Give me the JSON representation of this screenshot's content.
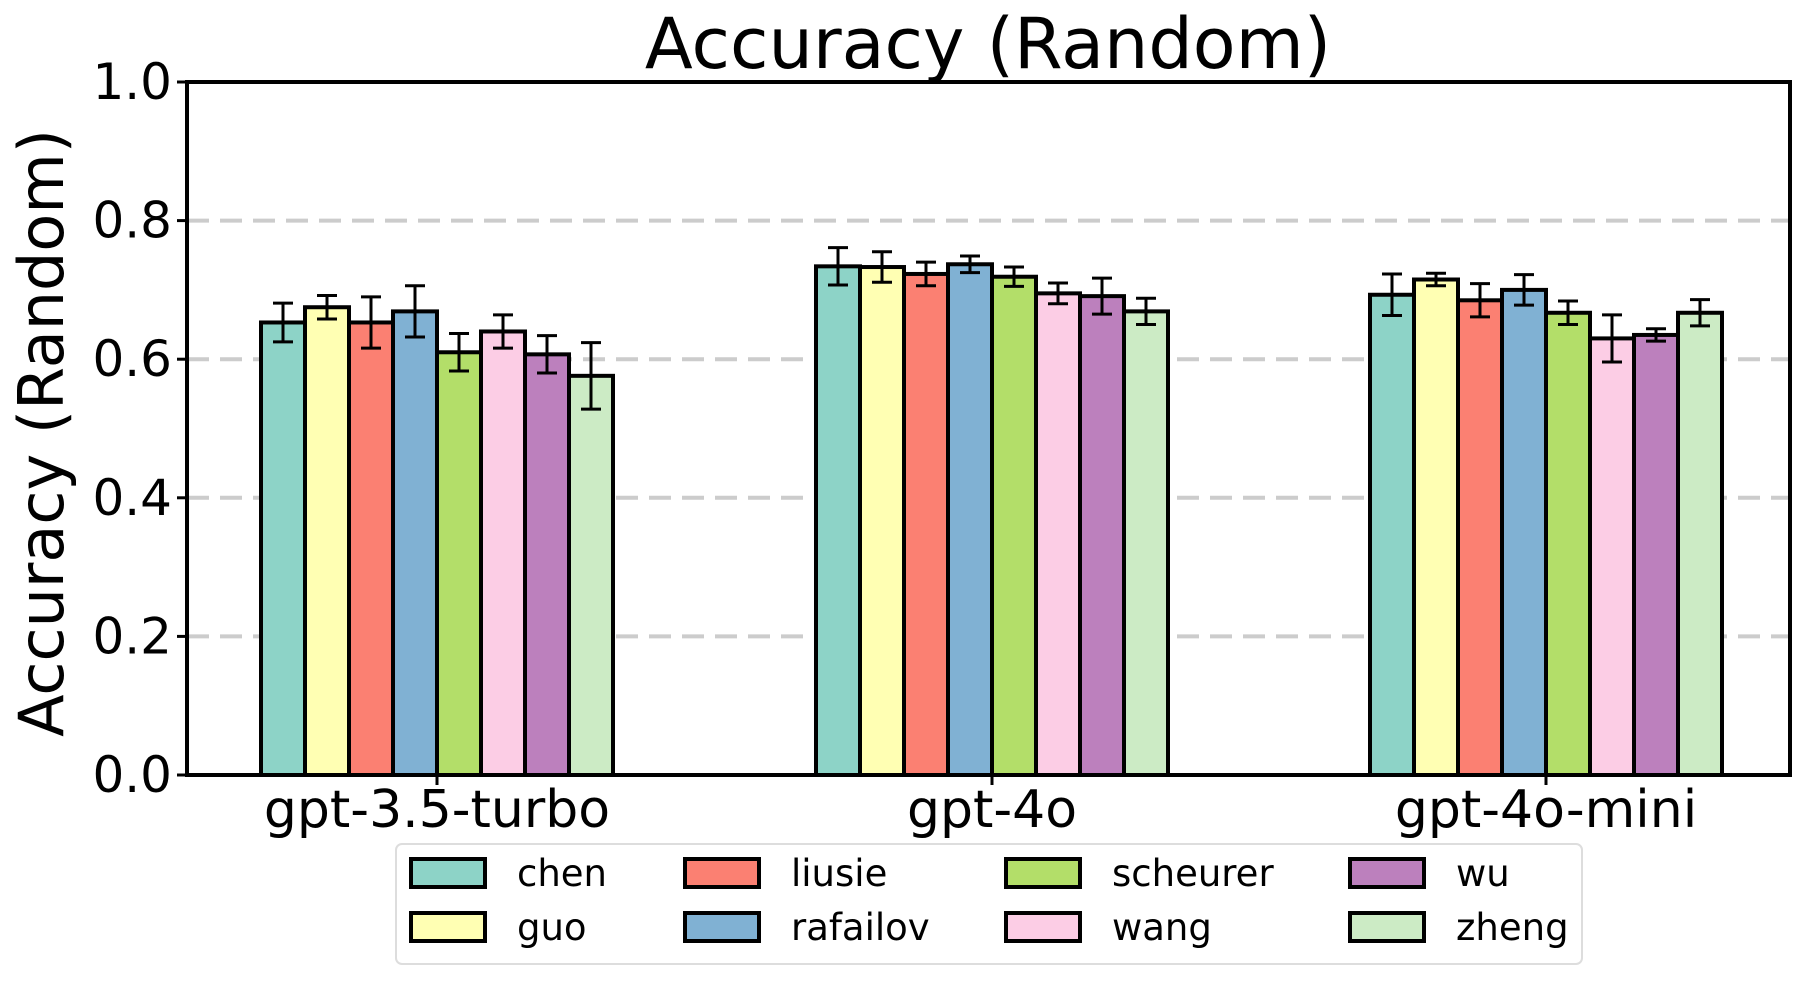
{
  "chart_data": {
    "type": "bar",
    "title": "Accuracy (Random)",
    "xlabel": "",
    "ylabel": "Accuracy (Random)",
    "ylim": [
      0.0,
      1.0
    ],
    "yticks": [
      "0.0",
      "0.2",
      "0.4",
      "0.6",
      "0.8",
      "1.0"
    ],
    "grid": "horizontal dashed at 0.2, 0.4, 0.6, 0.8",
    "legend_position": "bottom-center",
    "categories": [
      "gpt-3.5-turbo",
      "gpt-4o",
      "gpt-4o-mini"
    ],
    "series": [
      {
        "name": "chen",
        "color": "#8dd3c7",
        "values": [
          0.653,
          0.734,
          0.693
        ],
        "errors": [
          0.028,
          0.027,
          0.03
        ]
      },
      {
        "name": "guo",
        "color": "#ffffb3",
        "values": [
          0.675,
          0.733,
          0.715
        ],
        "errors": [
          0.017,
          0.022,
          0.009
        ]
      },
      {
        "name": "liusie",
        "color": "#fb8072",
        "values": [
          0.653,
          0.723,
          0.685
        ],
        "errors": [
          0.037,
          0.017,
          0.024
        ]
      },
      {
        "name": "rafailov",
        "color": "#80b1d3",
        "values": [
          0.669,
          0.737,
          0.7
        ],
        "errors": [
          0.037,
          0.012,
          0.022
        ]
      },
      {
        "name": "scheurer",
        "color": "#b3de69",
        "values": [
          0.61,
          0.719,
          0.667
        ],
        "errors": [
          0.027,
          0.014,
          0.017
        ]
      },
      {
        "name": "wang",
        "color": "#fccde5",
        "values": [
          0.64,
          0.695,
          0.63
        ],
        "errors": [
          0.024,
          0.015,
          0.034
        ]
      },
      {
        "name": "wu",
        "color": "#bc80bd",
        "values": [
          0.607,
          0.691,
          0.635
        ],
        "errors": [
          0.027,
          0.026,
          0.009
        ]
      },
      {
        "name": "zheng",
        "color": "#ccebc5",
        "values": [
          0.576,
          0.669,
          0.667
        ],
        "errors": [
          0.048,
          0.019,
          0.019
        ]
      }
    ]
  }
}
